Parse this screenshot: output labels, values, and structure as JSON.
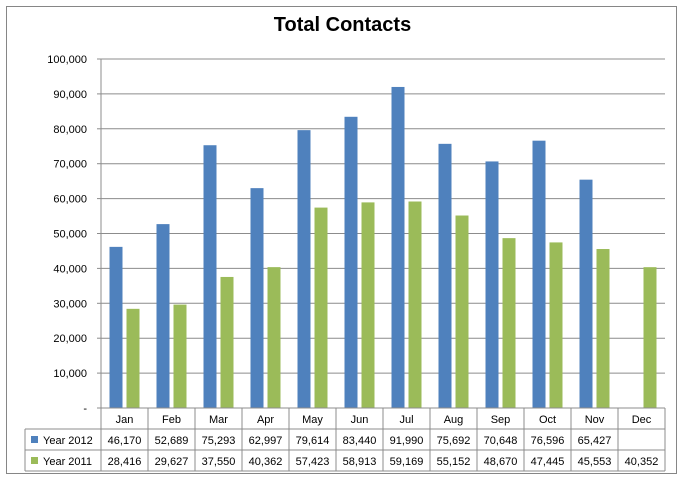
{
  "chart_data": {
    "type": "bar",
    "title": "Total Contacts",
    "categories": [
      "Jan",
      "Feb",
      "Mar",
      "Apr",
      "May",
      "Jun",
      "Jul",
      "Aug",
      "Sep",
      "Oct",
      "Nov",
      "Dec"
    ],
    "series": [
      {
        "name": "Year 2012",
        "color": "#4F81BD",
        "values": [
          46170,
          52689,
          75293,
          62997,
          79614,
          83440,
          91990,
          75692,
          70648,
          76596,
          65427,
          null
        ],
        "labels": [
          "46,170",
          "52,689",
          "75,293",
          "62,997",
          "79,614",
          "83,440",
          "91,990",
          "75,692",
          "70,648",
          "76,596",
          "65,427",
          ""
        ]
      },
      {
        "name": "Year 2011",
        "color": "#9BBB59",
        "values": [
          28416,
          29627,
          37550,
          40362,
          57423,
          58913,
          59169,
          55152,
          48670,
          47445,
          45553,
          40352
        ],
        "labels": [
          "28,416",
          "29,627",
          "37,550",
          "40,362",
          "57,423",
          "58,913",
          "59,169",
          "55,152",
          "48,670",
          "47,445",
          "45,553",
          "40,352"
        ]
      }
    ],
    "ylim": [
      0,
      100000
    ],
    "yticks": [
      0,
      10000,
      20000,
      30000,
      40000,
      50000,
      60000,
      70000,
      80000,
      90000,
      100000
    ],
    "ytick_labels": [
      "-",
      "10,000",
      "20,000",
      "30,000",
      "40,000",
      "50,000",
      "60,000",
      "70,000",
      "80,000",
      "90,000",
      "100,000"
    ],
    "grid": true,
    "legend": "data-table-left"
  }
}
